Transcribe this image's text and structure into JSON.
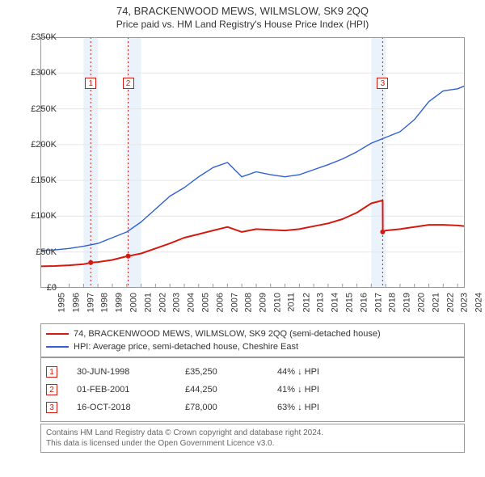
{
  "title": "74, BRACKENWOOD MEWS, WILMSLOW, SK9 2QQ",
  "subtitle": "Price paid vs. HM Land Registry's House Price Index (HPI)",
  "chart": {
    "type": "line",
    "background_color": "#ffffff",
    "grid_color": "#e6e6e6",
    "border_color": "#999999",
    "vband_color": "#eaf2fb",
    "vband_years": [
      1998,
      2001,
      2018
    ],
    "ylim": [
      0,
      350000
    ],
    "ytick_step": 50000,
    "ytick_labels": [
      "£0",
      "£50K",
      "£100K",
      "£150K",
      "£200K",
      "£250K",
      "£300K",
      "£350K"
    ],
    "xlim": [
      1995,
      2024.5
    ],
    "xtick_years": [
      1995,
      1996,
      1997,
      1998,
      1999,
      2000,
      2001,
      2002,
      2003,
      2004,
      2005,
      2006,
      2007,
      2008,
      2009,
      2010,
      2011,
      2012,
      2013,
      2014,
      2015,
      2016,
      2017,
      2018,
      2019,
      2020,
      2021,
      2022,
      2023,
      2024
    ],
    "series": [
      {
        "name": "74, BRACKENWOOD MEWS, WILMSLOW, SK9 2QQ (semi-detached house)",
        "color": "#d4190e",
        "width": 2,
        "x": [
          1995,
          1996,
          1997,
          1998,
          1998.5,
          1999,
          2000,
          2001,
          2001.1,
          2002,
          2003,
          2004,
          2005,
          2006,
          2007,
          2008,
          2009,
          2010,
          2011,
          2012,
          2013,
          2014,
          2015,
          2016,
          2017,
          2018,
          2018.79,
          2018.8,
          2019,
          2020,
          2021,
          2022,
          2023,
          2024,
          2024.5
        ],
        "y": [
          30000,
          30500,
          31500,
          33000,
          35250,
          36000,
          39000,
          44000,
          44250,
          48000,
          55000,
          62000,
          70000,
          75000,
          80000,
          85000,
          78000,
          82000,
          81000,
          80000,
          82000,
          86000,
          90000,
          96000,
          105000,
          118000,
          122000,
          78000,
          80000,
          82000,
          85000,
          88000,
          88000,
          87000,
          86000
        ]
      },
      {
        "name": "HPI: Average price, semi-detached house, Cheshire East",
        "color": "#2f5fd0",
        "width": 1.4,
        "x": [
          1995,
          1996,
          1997,
          1998,
          1999,
          2000,
          2001,
          2002,
          2003,
          2004,
          2005,
          2006,
          2007,
          2008,
          2009,
          2010,
          2011,
          2012,
          2013,
          2014,
          2015,
          2016,
          2017,
          2018,
          2019,
          2020,
          2021,
          2022,
          2023,
          2024,
          2024.5
        ],
        "y": [
          52000,
          53000,
          55000,
          58000,
          62000,
          70000,
          78000,
          92000,
          110000,
          128000,
          140000,
          155000,
          168000,
          175000,
          155000,
          162000,
          158000,
          155000,
          158000,
          165000,
          172000,
          180000,
          190000,
          202000,
          210000,
          218000,
          235000,
          260000,
          275000,
          278000,
          282000
        ]
      }
    ],
    "sale_markers": [
      {
        "n": "1",
        "x": 1998.5,
        "y": 35250,
        "line_color": "#d4190e",
        "chart_y_offset": 50
      },
      {
        "n": "2",
        "x": 2001.1,
        "y": 44250,
        "line_color": "#d4190e",
        "chart_y_offset": 50
      },
      {
        "n": "3",
        "x": 2018.79,
        "y": 78000,
        "line_color": "#d4190e",
        "chart_y_offset": 50
      }
    ],
    "title_fontsize": 13,
    "subtitle_fontsize": 12,
    "tick_fontsize": 11
  },
  "legend": {
    "items": [
      {
        "label": "74, BRACKENWOOD MEWS, WILMSLOW, SK9 2QQ (semi-detached house)",
        "color": "#d4190e"
      },
      {
        "label": "HPI: Average price, semi-detached house, Cheshire East",
        "color": "#2f5fd0"
      }
    ]
  },
  "sales": [
    {
      "n": "1",
      "date": "30-JUN-1998",
      "price": "£35,250",
      "pct": "44% ↓ HPI",
      "color": "#d4190e"
    },
    {
      "n": "2",
      "date": "01-FEB-2001",
      "price": "£44,250",
      "pct": "41% ↓ HPI",
      "color": "#d4190e"
    },
    {
      "n": "3",
      "date": "16-OCT-2018",
      "price": "£78,000",
      "pct": "63% ↓ HPI",
      "color": "#d4190e"
    }
  ],
  "copyright": {
    "line1": "Contains HM Land Registry data © Crown copyright and database right 2024.",
    "line2": "This data is licensed under the Open Government Licence v3.0."
  }
}
